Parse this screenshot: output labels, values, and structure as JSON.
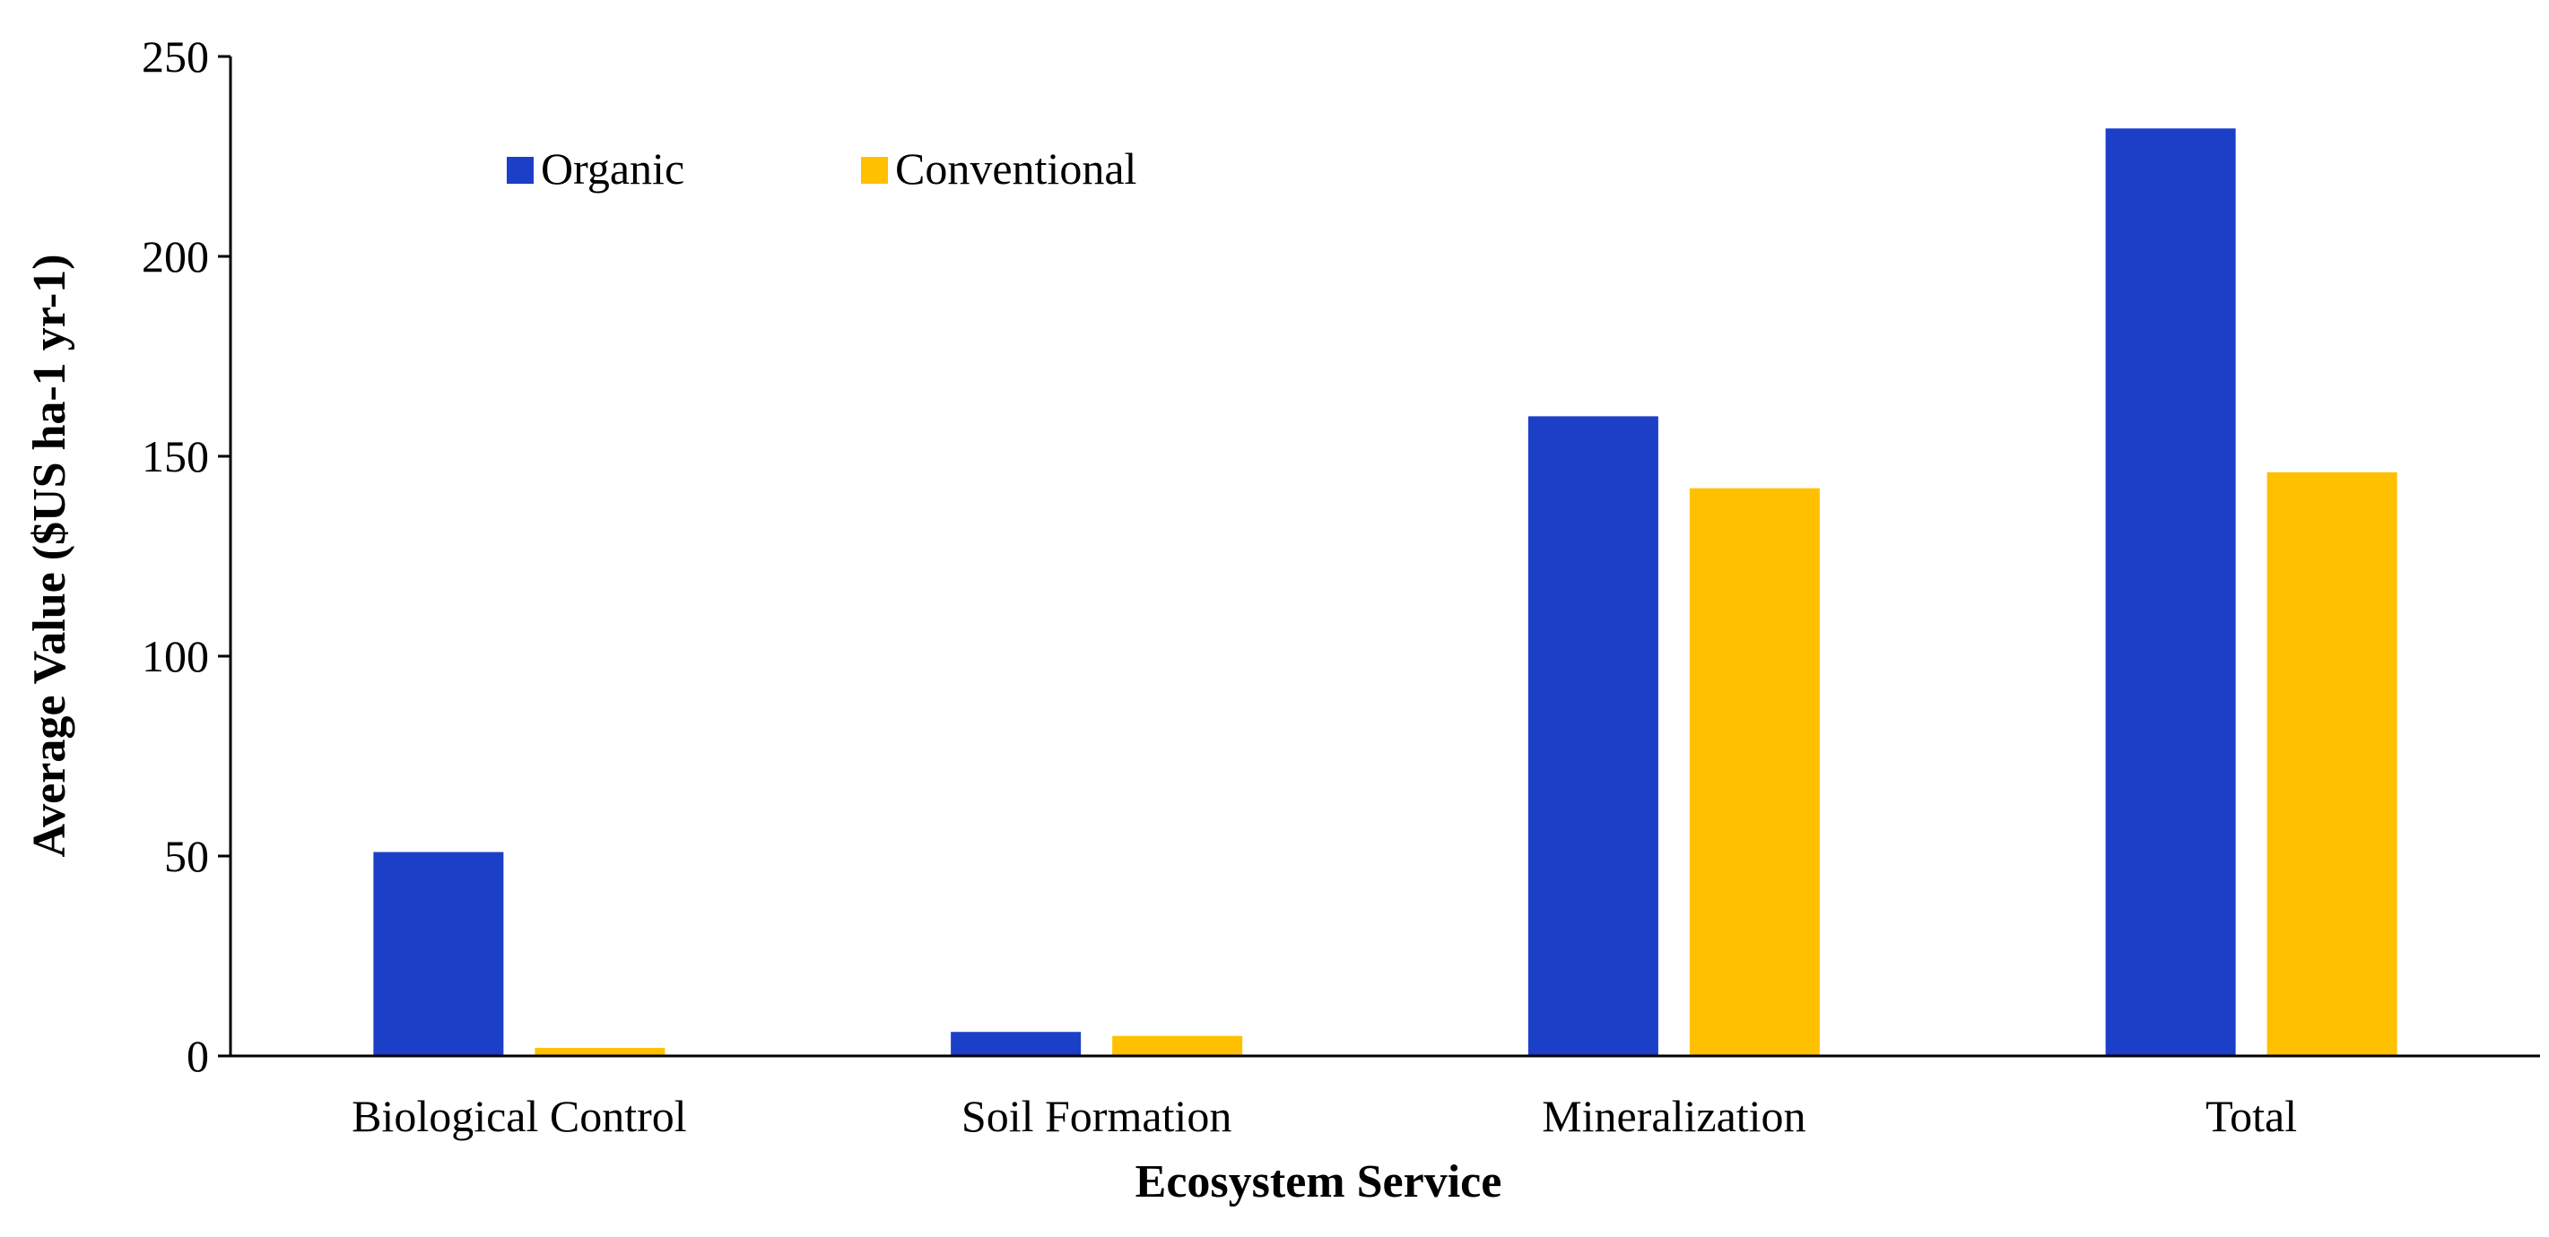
{
  "chart_data": {
    "type": "bar",
    "title": "",
    "xlabel": "Ecosystem Service",
    "ylabel": "Average Value ($US ha-1 yr-1)",
    "categories": [
      "Biological Control",
      "Soil Formation",
      "Mineralization",
      "Total"
    ],
    "series": [
      {
        "name": "Organic",
        "color": "#1c3fc8",
        "values": [
          51,
          6,
          160,
          232
        ]
      },
      {
        "name": "Conventional",
        "color": "#ffc000",
        "values": [
          2,
          5,
          142,
          146
        ]
      }
    ],
    "ylim": [
      0,
      250
    ],
    "yticks": [
      0,
      50,
      100,
      150,
      200,
      250
    ],
    "grid": false,
    "legend_position": "top-left"
  }
}
